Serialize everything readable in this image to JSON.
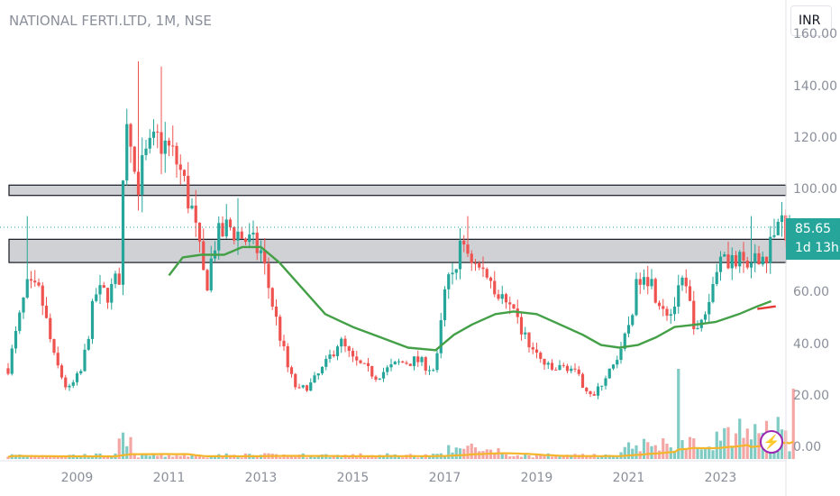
{
  "symbol_title": "NATIONAL FERTI.LTD, 1M, NSE",
  "currency": "INR",
  "price_badge": {
    "price": "85.65",
    "countdown": "1d 13h"
  },
  "y_ticks": [
    {
      "label": "160.00",
      "v": 160
    },
    {
      "label": "140.00",
      "v": 140
    },
    {
      "label": "120.00",
      "v": 120
    },
    {
      "label": "100.00",
      "v": 100
    },
    {
      "label": "80.00",
      "v": 80
    },
    {
      "label": "60.00",
      "v": 60
    },
    {
      "label": "40.00",
      "v": 40
    },
    {
      "label": "20.00",
      "v": 20
    },
    {
      "label": "0.00",
      "v": 0
    }
  ],
  "x_ticks": [
    {
      "label": "2009",
      "t": 2009.0
    },
    {
      "label": "2011",
      "t": 2011.0
    },
    {
      "label": "2013",
      "t": 2013.0
    },
    {
      "label": "2015",
      "t": 2015.0
    },
    {
      "label": "2017",
      "t": 2017.0
    },
    {
      "label": "2019",
      "t": 2019.0
    },
    {
      "label": "2021",
      "t": 2021.0
    },
    {
      "label": "2023",
      "t": 2023.0
    }
  ],
  "colors": {
    "up": "#26a69a",
    "down": "#ef5350",
    "ma": "#43a047",
    "vol_ma": "#f5b52a",
    "zone": "#c8c9cd",
    "accent": "#9c27b0"
  },
  "icons": {
    "flash": "lightning-icon"
  },
  "chart_data": {
    "type": "candlestick",
    "title": "NATIONAL FERTI.LTD, 1M, NSE",
    "ylim": [
      0,
      160
    ],
    "xlim": [
      2007.5,
      2024.6
    ],
    "price_anchors": [
      [
        2007.5,
        31
      ],
      [
        2007.9,
        62
      ],
      [
        2008.2,
        60
      ],
      [
        2008.5,
        35
      ],
      [
        2008.8,
        22
      ],
      [
        2009.1,
        30
      ],
      [
        2009.4,
        60
      ],
      [
        2009.7,
        60
      ],
      [
        2009.95,
        68
      ],
      [
        2010.05,
        128
      ],
      [
        2010.3,
        102
      ],
      [
        2010.5,
        112
      ],
      [
        2010.8,
        120
      ],
      [
        2011.2,
        110
      ],
      [
        2011.5,
        92
      ],
      [
        2011.8,
        62
      ],
      [
        2012.0,
        80
      ],
      [
        2012.3,
        86
      ],
      [
        2012.6,
        82
      ],
      [
        2013.0,
        76
      ],
      [
        2013.3,
        52
      ],
      [
        2013.6,
        30
      ],
      [
        2013.8,
        22
      ],
      [
        2014.1,
        25
      ],
      [
        2014.4,
        32
      ],
      [
        2014.7,
        42
      ],
      [
        2015.0,
        34
      ],
      [
        2015.5,
        28
      ],
      [
        2016.0,
        33
      ],
      [
        2016.4,
        34
      ],
      [
        2016.8,
        30
      ],
      [
        2017.0,
        60
      ],
      [
        2017.4,
        80
      ],
      [
        2017.7,
        70
      ],
      [
        2018.0,
        66
      ],
      [
        2018.3,
        56
      ],
      [
        2018.6,
        48
      ],
      [
        2018.9,
        38
      ],
      [
        2019.3,
        30
      ],
      [
        2019.7,
        32
      ],
      [
        2020.0,
        25
      ],
      [
        2020.25,
        20
      ],
      [
        2020.5,
        28
      ],
      [
        2020.8,
        34
      ],
      [
        2021.0,
        48
      ],
      [
        2021.3,
        72
      ],
      [
        2021.6,
        60
      ],
      [
        2021.9,
        52
      ],
      [
        2022.2,
        64
      ],
      [
        2022.5,
        44
      ],
      [
        2022.8,
        60
      ],
      [
        2023.0,
        78
      ],
      [
        2023.3,
        72
      ],
      [
        2023.7,
        70
      ],
      [
        2024.0,
        76
      ],
      [
        2024.2,
        85.65
      ]
    ],
    "spikes": [
      {
        "t": 2007.95,
        "high": 90
      },
      {
        "t": 2010.3,
        "high": 150
      },
      {
        "t": 2010.85,
        "high": 148
      },
      {
        "t": 2012.5,
        "high": 97
      },
      {
        "t": 2017.5,
        "high": 90
      },
      {
        "t": 2023.65,
        "high": 90
      },
      {
        "t": 2024.15,
        "high": 89
      }
    ],
    "moving_average": {
      "anchors": [
        [
          2011.0,
          67
        ],
        [
          2011.3,
          74
        ],
        [
          2011.7,
          75
        ],
        [
          2012.2,
          75
        ],
        [
          2012.6,
          78
        ],
        [
          2013.0,
          78
        ],
        [
          2013.4,
          72
        ],
        [
          2013.9,
          62
        ],
        [
          2014.4,
          52
        ],
        [
          2015.0,
          47
        ],
        [
          2015.6,
          43
        ],
        [
          2016.2,
          39
        ],
        [
          2016.8,
          38
        ],
        [
          2017.2,
          44
        ],
        [
          2017.6,
          48
        ],
        [
          2018.1,
          52
        ],
        [
          2018.5,
          53
        ],
        [
          2019.0,
          52
        ],
        [
          2019.5,
          48
        ],
        [
          2020.0,
          44
        ],
        [
          2020.4,
          40
        ],
        [
          2020.8,
          39
        ],
        [
          2021.2,
          40
        ],
        [
          2021.6,
          43
        ],
        [
          2022.0,
          47
        ],
        [
          2022.5,
          48
        ],
        [
          2022.9,
          49
        ],
        [
          2023.4,
          52
        ],
        [
          2023.8,
          55
        ],
        [
          2024.1,
          57
        ]
      ]
    },
    "short_segment": [
      [
        2023.8,
        54
      ],
      [
        2024.2,
        55
      ]
    ],
    "zones": [
      {
        "low": 98,
        "high": 102
      },
      {
        "low": 72,
        "high": 81
      }
    ],
    "last_price": 85.65
  }
}
